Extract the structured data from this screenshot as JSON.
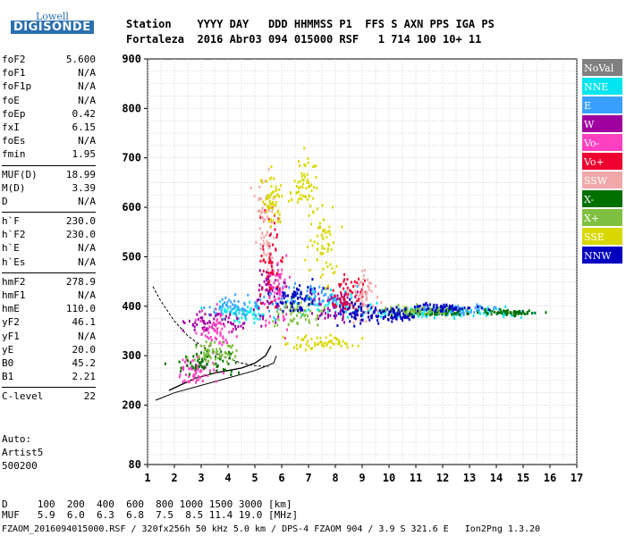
{
  "logo": {
    "top": "Lowell",
    "main": "DIGISONDE"
  },
  "header": {
    "row1": "Station    YYYY DAY   DDD HHMMSS P1  FFS S AXN PPS IGA PS",
    "row2": "Fortaleza  2016 Abr03 094 015000 RSF   1 714 100 10+ 11"
  },
  "params_groups": [
    [
      [
        "foF2",
        "5.600"
      ],
      [
        "foF1",
        "N/A"
      ],
      [
        "foF1p",
        "N/A"
      ],
      [
        "foE",
        "N/A"
      ],
      [
        "foEp",
        "0.42"
      ],
      [
        "fxI",
        "6.15"
      ],
      [
        "foEs",
        "N/A"
      ],
      [
        "fmin",
        "1.95"
      ]
    ],
    [
      [
        "MUF(D)",
        "18.99"
      ],
      [
        "M(D)",
        "3.39"
      ],
      [
        "D",
        "N/A"
      ]
    ],
    [
      [
        "h`F",
        "230.0"
      ],
      [
        "h`F2",
        "230.0"
      ],
      [
        "h`E",
        "N/A"
      ],
      [
        "h`Es",
        "N/A"
      ]
    ],
    [
      [
        "hmF2",
        "278.9"
      ],
      [
        "hmF1",
        "N/A"
      ],
      [
        "hmE",
        "110.0"
      ],
      [
        "yF2",
        "46.1"
      ],
      [
        "yF1",
        "N/A"
      ],
      [
        "yE",
        "20.0"
      ],
      [
        "B0",
        "45.2"
      ],
      [
        "B1",
        "2.21"
      ]
    ],
    [
      [
        "C-level",
        "22"
      ]
    ]
  ],
  "auto": {
    "line1": "Auto:",
    "line2": "Artist5",
    "line3": "500200"
  },
  "legend": [
    {
      "label": "NoVal",
      "color": "#808080"
    },
    {
      "label": "NNE",
      "color": "#00e5ee"
    },
    {
      "label": "E",
      "color": "#3aa0ff"
    },
    {
      "label": "W",
      "color": "#a000a0"
    },
    {
      "label": "Vo-",
      "color": "#ff40c0"
    },
    {
      "label": "Vo+",
      "color": "#ee0030"
    },
    {
      "label": "SSW",
      "color": "#f0a8a8"
    },
    {
      "label": "X-",
      "color": "#007000"
    },
    {
      "label": "X+",
      "color": "#80c040"
    },
    {
      "label": "SSE",
      "color": "#d8d800"
    },
    {
      "label": "NNW",
      "color": "#0000c0"
    }
  ],
  "bottom": {
    "d_row": "D     100  200  400  600  800 1000 1500 3000 [km]",
    "muf_row": "MUF   5.9  6.0  6.3  6.8  7.5  8.5 11.4 19.0 [MHz]"
  },
  "footer": "FZAOM_2016094015000.RSF / 320fx256h 50 kHz 5.0 km / DPS-4 FZAOM 904 / 3.9 S 321.6 E   Ion2Png 1.3.20",
  "chart_data": {
    "type": "scatter",
    "xlim": [
      1,
      17
    ],
    "ylim": [
      80,
      900
    ],
    "x_ticks": [
      "1",
      "2",
      "3",
      "4",
      "5",
      "6",
      "7",
      "8",
      "9",
      "10",
      "11",
      "12",
      "13",
      "14",
      "15",
      "16",
      "17"
    ],
    "y_ticks": [
      "80",
      "200",
      "300",
      "400",
      "500",
      "600",
      "700",
      "800",
      "900"
    ],
    "grid": true,
    "series": [
      {
        "name": "NNE",
        "color": "#00e5ee",
        "clusters": [
          [
            4.5,
            390,
            1.2,
            20
          ],
          [
            10.5,
            390,
            3,
            10
          ],
          [
            13,
            390,
            2.5,
            10
          ],
          [
            8,
            410,
            1.5,
            25
          ]
        ]
      },
      {
        "name": "E",
        "color": "#3aa0ff",
        "clusters": [
          [
            4.3,
            400,
            1.4,
            25
          ],
          [
            7,
            420,
            1.5,
            30
          ],
          [
            12.5,
            395,
            2,
            12
          ]
        ]
      },
      {
        "name": "W",
        "color": "#a000a0",
        "clusters": [
          [
            5.5,
            430,
            0.6,
            60
          ],
          [
            3.5,
            370,
            1,
            25
          ],
          [
            8,
            400,
            1,
            40
          ]
        ]
      },
      {
        "name": "Vo-",
        "color": "#ff40c0",
        "clusters": [
          [
            2.8,
            270,
            0.8,
            30
          ],
          [
            5.8,
            440,
            0.5,
            80
          ],
          [
            3.5,
            350,
            0.8,
            40
          ]
        ]
      },
      {
        "name": "Vo+",
        "color": "#ee0030",
        "clusters": [
          [
            5.6,
            500,
            0.4,
            100
          ],
          [
            8.5,
            430,
            0.7,
            40
          ]
        ]
      },
      {
        "name": "SSW",
        "color": "#f0a8a8",
        "clusters": [
          [
            5.3,
            560,
            0.4,
            100
          ],
          [
            9,
            420,
            0.5,
            60
          ]
        ]
      },
      {
        "name": "X-",
        "color": "#007000",
        "clusters": [
          [
            3.2,
            290,
            1.2,
            25
          ],
          [
            11.5,
            390,
            2,
            8
          ],
          [
            14.5,
            390,
            1,
            6
          ]
        ]
      },
      {
        "name": "X+",
        "color": "#80c040",
        "clusters": [
          [
            3.5,
            310,
            1,
            25
          ],
          [
            6.5,
            390,
            1,
            30
          ],
          [
            11,
            395,
            1.5,
            10
          ]
        ]
      },
      {
        "name": "SSE",
        "color": "#d8d800",
        "clusters": [
          [
            7.5,
            330,
            1.5,
            15
          ],
          [
            5.6,
            620,
            0.4,
            60
          ],
          [
            6.8,
            650,
            0.5,
            60
          ],
          [
            7.5,
            520,
            0.6,
            80
          ]
        ]
      },
      {
        "name": "NNW",
        "color": "#0000c0",
        "clusters": [
          [
            8.8,
            390,
            0.8,
            25
          ],
          [
            10.2,
            385,
            0.8,
            12
          ],
          [
            6.5,
            420,
            0.8,
            30
          ],
          [
            12,
            400,
            1.5,
            10
          ]
        ]
      }
    ],
    "curves": {
      "profile_solid": [
        [
          1.3,
          210
        ],
        [
          2,
          225
        ],
        [
          3,
          240
        ],
        [
          4,
          255
        ],
        [
          5,
          270
        ],
        [
          5.7,
          285
        ],
        [
          5.8,
          300
        ]
      ],
      "trace_dashed": [
        [
          1.2,
          440
        ],
        [
          1.5,
          410
        ],
        [
          2,
          370
        ],
        [
          2.5,
          340
        ],
        [
          3,
          320
        ],
        [
          3.5,
          305
        ],
        [
          4,
          295
        ],
        [
          4.5,
          285
        ],
        [
          5,
          280
        ],
        [
          5.5,
          278
        ]
      ],
      "trace_lower": [
        [
          1.8,
          230
        ],
        [
          2.2,
          240
        ],
        [
          2.8,
          255
        ],
        [
          3.5,
          265
        ],
        [
          4,
          270
        ],
        [
          4.5,
          275
        ],
        [
          5,
          285
        ],
        [
          5.4,
          300
        ],
        [
          5.6,
          320
        ]
      ]
    }
  }
}
